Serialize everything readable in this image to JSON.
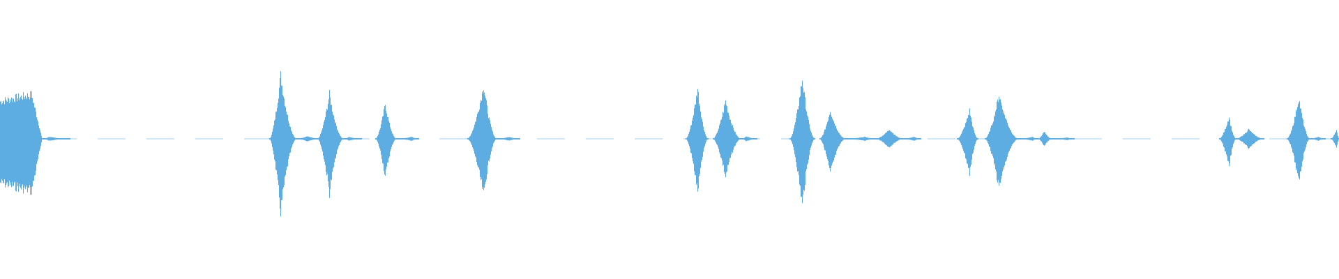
{
  "waveform": {
    "color": "#5dade2",
    "background": "#ffffff",
    "view": "audio-waveform"
  }
}
